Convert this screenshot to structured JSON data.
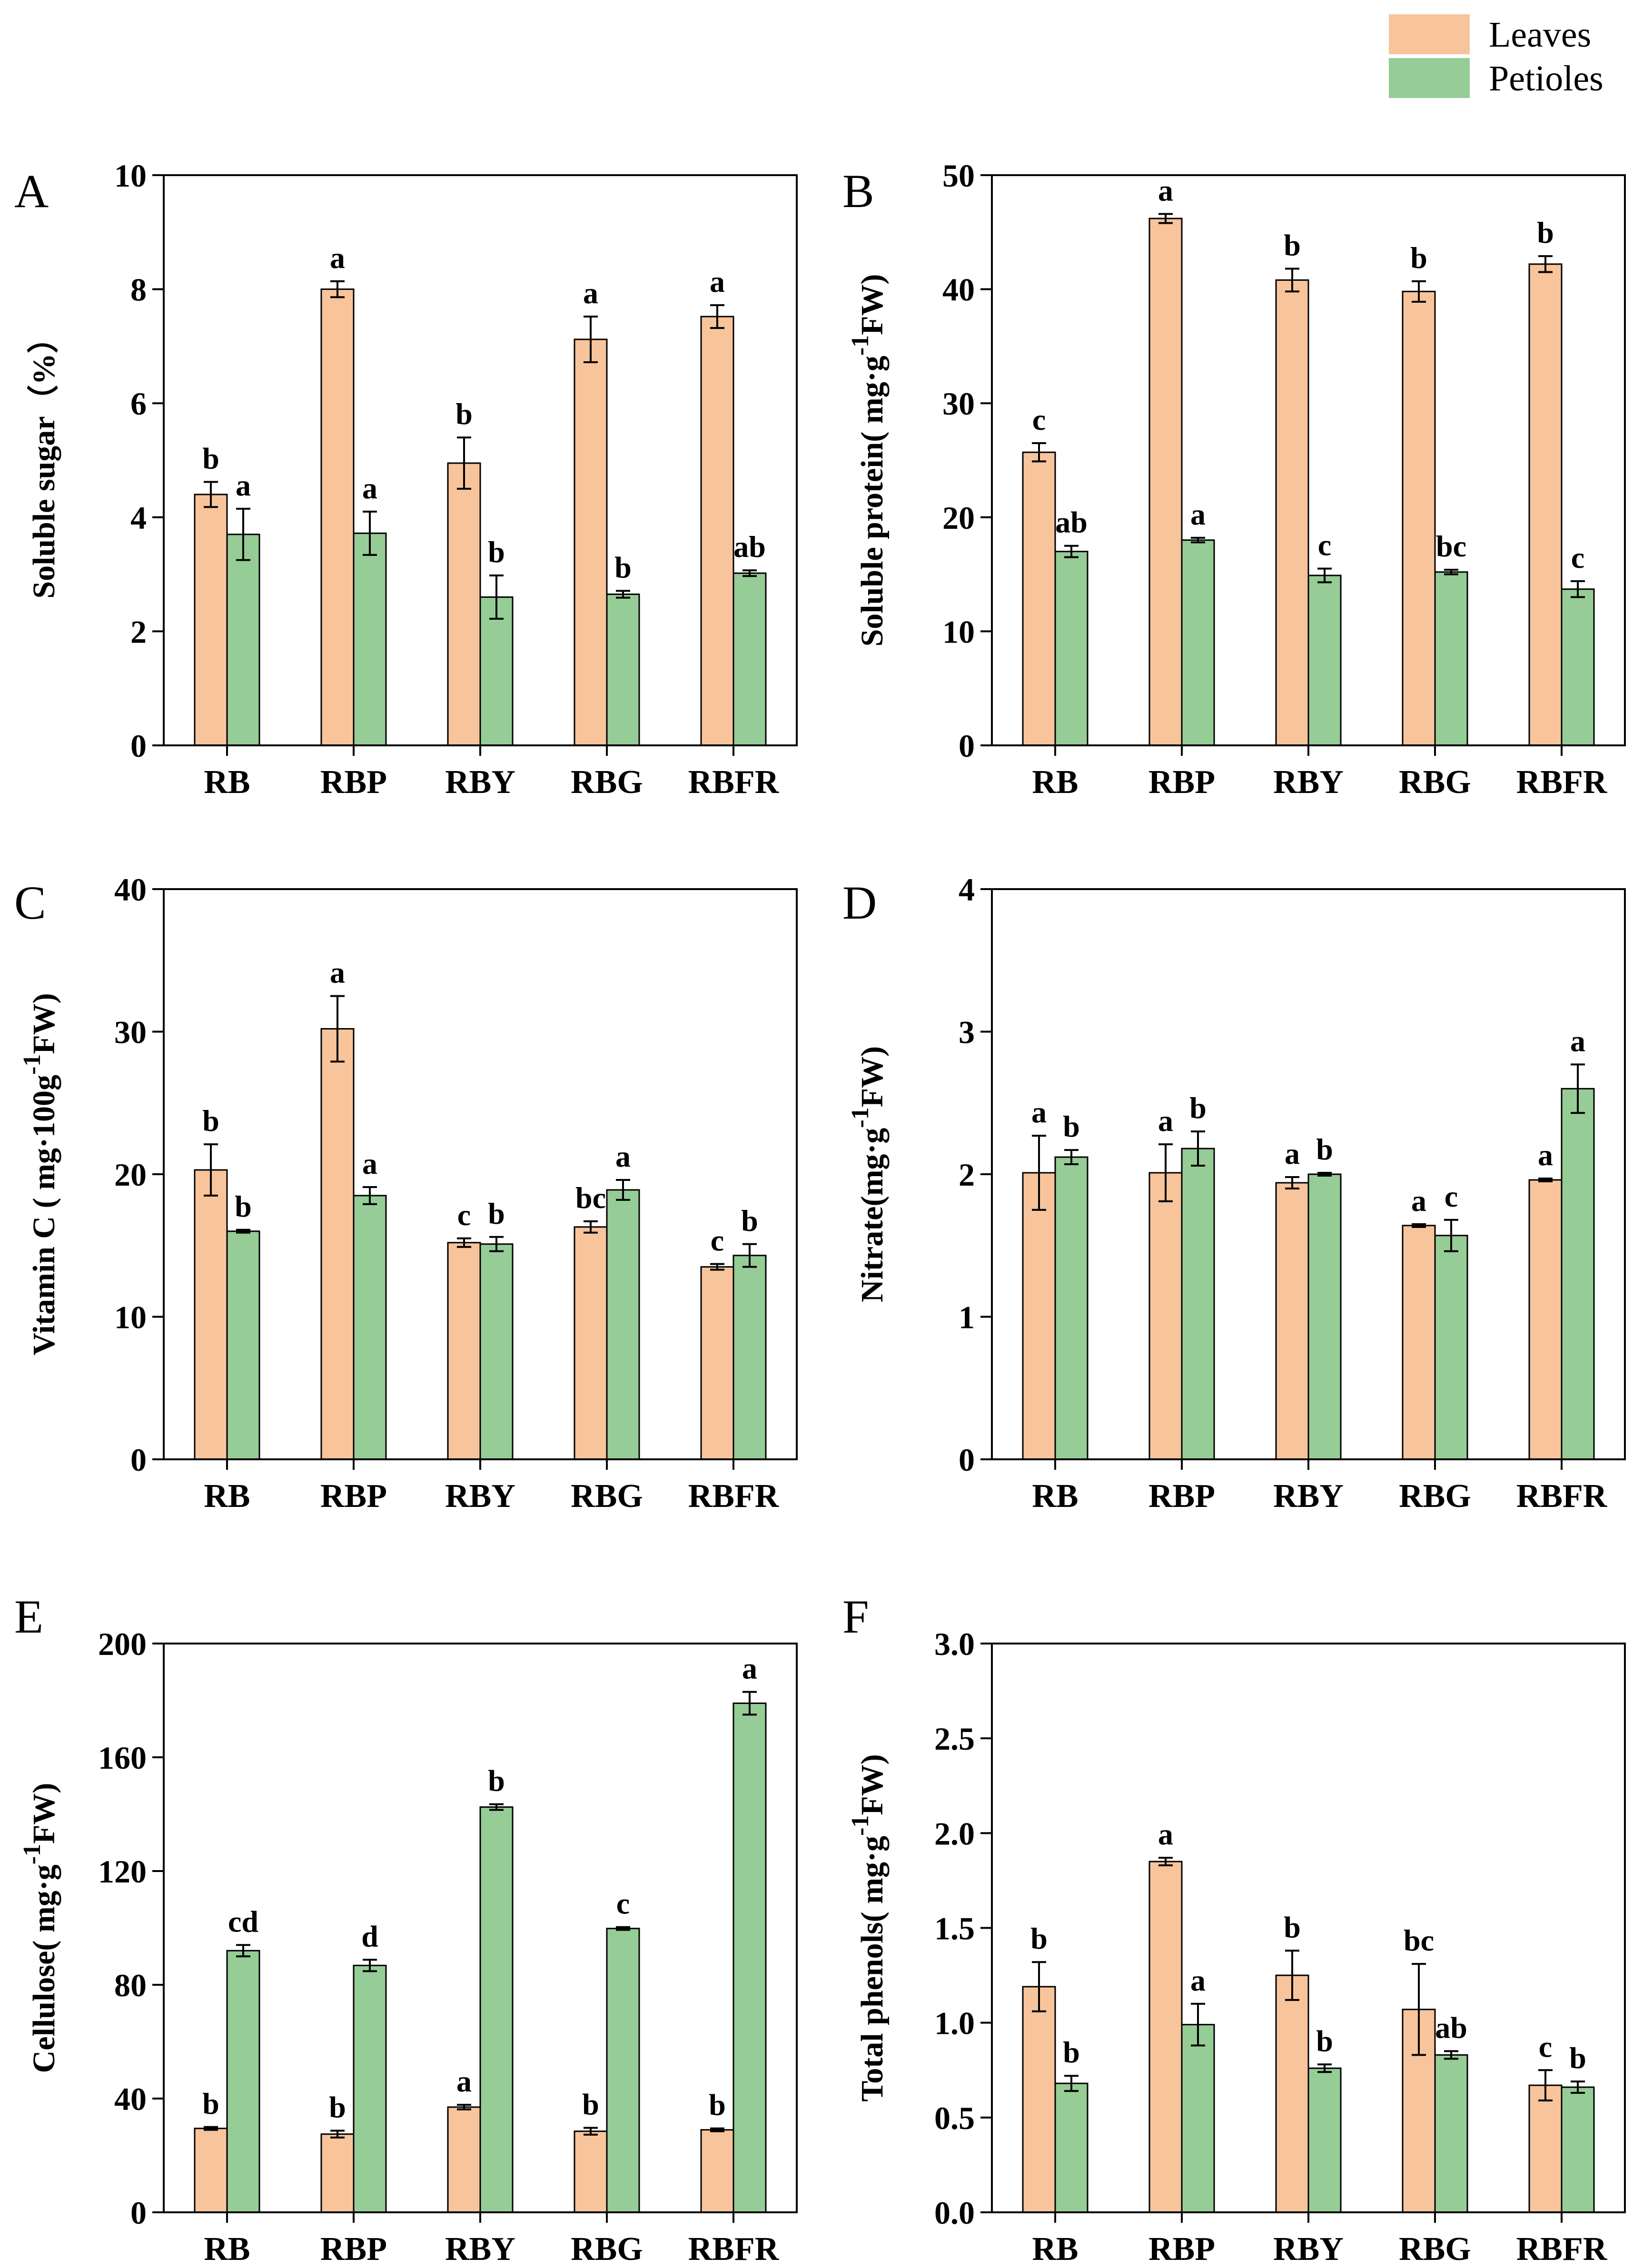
{
  "colors": {
    "leaves": "#f7c49c",
    "petioles": "#96cc96"
  },
  "legend": {
    "items": [
      "Leaves",
      "Petioles"
    ]
  },
  "chart_data": [
    {
      "type": "bar",
      "panel": "A",
      "ylabel": "Soluble sugar（%）",
      "ylim": [
        0,
        10
      ],
      "yticks": [
        0,
        2,
        4,
        6,
        8,
        10
      ],
      "categories": [
        "RB",
        "RBP",
        "RBY",
        "RBG",
        "RBFR"
      ],
      "series": [
        {
          "name": "Leaves",
          "values": [
            4.4,
            8.0,
            4.95,
            7.12,
            7.52
          ],
          "errors": [
            0.22,
            0.14,
            0.45,
            0.4,
            0.2
          ],
          "labels": [
            "b",
            "a",
            "b",
            "a",
            "a"
          ]
        },
        {
          "name": "Petioles",
          "values": [
            3.7,
            3.72,
            2.6,
            2.65,
            3.02
          ],
          "errors": [
            0.45,
            0.38,
            0.38,
            0.06,
            0.05
          ],
          "labels": [
            "a",
            "a",
            "b",
            "b",
            "ab"
          ]
        }
      ]
    },
    {
      "type": "bar",
      "panel": "B",
      "ylabel": "Soluble protein( mg·g-1FW)",
      "ylabel_parts": [
        "Soluble protein( mg·g",
        "-1",
        "FW)"
      ],
      "ylim": [
        0,
        50
      ],
      "yticks": [
        0,
        10,
        20,
        30,
        40,
        50
      ],
      "categories": [
        "RB",
        "RBP",
        "RBY",
        "RBG",
        "RBFR"
      ],
      "series": [
        {
          "name": "Leaves",
          "values": [
            25.7,
            46.2,
            40.8,
            39.8,
            42.2
          ],
          "errors": [
            0.8,
            0.4,
            1.0,
            0.9,
            0.7
          ],
          "labels": [
            "c",
            "a",
            "b",
            "b",
            "b"
          ]
        },
        {
          "name": "Petioles",
          "values": [
            17.0,
            18.0,
            14.9,
            15.2,
            13.7
          ],
          "errors": [
            0.5,
            0.2,
            0.6,
            0.2,
            0.7
          ],
          "labels": [
            "ab",
            "a",
            "c",
            "bc",
            "c"
          ]
        }
      ]
    },
    {
      "type": "bar",
      "panel": "C",
      "ylabel": "Vitamin C ( mg·100g-1FW)",
      "ylabel_parts": [
        "Vitamin C ( mg·100g",
        "-1",
        "FW)"
      ],
      "ylim": [
        0,
        40
      ],
      "yticks": [
        0,
        10,
        20,
        30,
        40
      ],
      "categories": [
        "RB",
        "RBP",
        "RBY",
        "RBG",
        "RBFR"
      ],
      "series": [
        {
          "name": "Leaves",
          "values": [
            20.3,
            30.2,
            15.2,
            16.3,
            13.5
          ],
          "errors": [
            1.8,
            2.3,
            0.3,
            0.4,
            0.2
          ],
          "labels": [
            "b",
            "a",
            "c",
            "bc",
            "c"
          ]
        },
        {
          "name": "Petioles",
          "values": [
            16.0,
            18.5,
            15.1,
            18.9,
            14.3
          ],
          "errors": [
            0.1,
            0.6,
            0.5,
            0.7,
            0.8
          ],
          "labels": [
            "b",
            "a",
            "b",
            "a",
            "b"
          ]
        }
      ]
    },
    {
      "type": "bar",
      "panel": "D",
      "ylabel": "Nitrate(mg·g-1FW)",
      "ylabel_parts": [
        "Nitrate(mg·g",
        "-1",
        "FW)"
      ],
      "ylim": [
        0,
        4
      ],
      "yticks": [
        0,
        1,
        2,
        3,
        4
      ],
      "categories": [
        "RB",
        "RBP",
        "RBY",
        "RBG",
        "RBFR"
      ],
      "series": [
        {
          "name": "Leaves",
          "values": [
            2.01,
            2.01,
            1.94,
            1.64,
            1.96
          ],
          "errors": [
            0.26,
            0.2,
            0.04,
            0.01,
            0.01
          ],
          "labels": [
            "a",
            "a",
            "a",
            "a",
            "a"
          ]
        },
        {
          "name": "Petioles",
          "values": [
            2.12,
            2.18,
            2.0,
            1.57,
            2.6
          ],
          "errors": [
            0.05,
            0.12,
            0.01,
            0.11,
            0.17
          ],
          "labels": [
            "b",
            "b",
            "b",
            "c",
            "a"
          ]
        }
      ]
    },
    {
      "type": "bar",
      "panel": "E",
      "ylabel": "Cellulose( mg·g-1FW)",
      "ylabel_parts": [
        "Cellulose( mg·g",
        "-1",
        "FW)"
      ],
      "ylim": [
        0,
        200
      ],
      "yticks": [
        0,
        40,
        80,
        120,
        160,
        200
      ],
      "categories": [
        "RB",
        "RBP",
        "RBY",
        "RBG",
        "RBFR"
      ],
      "series": [
        {
          "name": "Leaves",
          "values": [
            29.5,
            27.5,
            37.0,
            28.5,
            29.0
          ],
          "errors": [
            0.5,
            1.2,
            0.8,
            1.2,
            0.5
          ],
          "labels": [
            "b",
            "b",
            "a",
            "b",
            "b"
          ]
        },
        {
          "name": "Petioles",
          "values": [
            92.0,
            86.8,
            142.5,
            99.8,
            179.0
          ],
          "errors": [
            2.0,
            2.0,
            1.0,
            0.5,
            4.0
          ],
          "labels": [
            "cd",
            "d",
            "b",
            "c",
            "a"
          ]
        }
      ]
    },
    {
      "type": "bar",
      "panel": "F",
      "ylabel": "Total phenols( mg·g-1FW)",
      "ylabel_parts": [
        "Total phenols( mg·g",
        "-1",
        "FW)"
      ],
      "ylim": [
        0,
        3.0
      ],
      "yticks": [
        "0.0",
        "0.5",
        "1.0",
        "1.5",
        "2.0",
        "2.5",
        "3.0"
      ],
      "categories": [
        "RB",
        "RBP",
        "RBY",
        "RBG",
        "RBFR"
      ],
      "series": [
        {
          "name": "Leaves",
          "values": [
            1.19,
            1.85,
            1.25,
            1.07,
            0.67
          ],
          "errors": [
            0.13,
            0.02,
            0.13,
            0.24,
            0.08
          ],
          "labels": [
            "b",
            "a",
            "b",
            "bc",
            "c"
          ]
        },
        {
          "name": "Petioles",
          "values": [
            0.68,
            0.99,
            0.76,
            0.83,
            0.66
          ],
          "errors": [
            0.04,
            0.11,
            0.02,
            0.02,
            0.03
          ],
          "labels": [
            "b",
            "a",
            "b",
            "ab",
            "b"
          ]
        }
      ]
    }
  ]
}
